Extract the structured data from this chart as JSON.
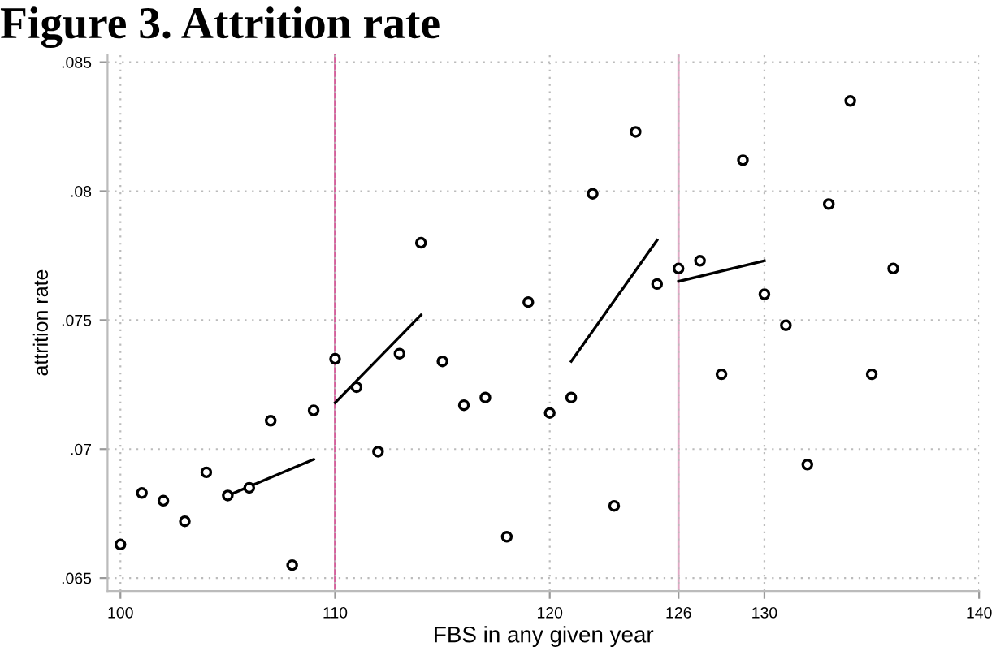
{
  "chart_data": {
    "type": "scatter",
    "title": "Figure 3. Attrition rate",
    "xlabel": "FBS in any given year",
    "ylabel": "attrition rate",
    "xlim": [
      99.4,
      140
    ],
    "ylim": [
      0.0645,
      0.0853
    ],
    "xticks": [
      100,
      110,
      120,
      126,
      130,
      140
    ],
    "yticks": [
      {
        "value": 0.065,
        "label": ".065"
      },
      {
        "value": 0.07,
        "label": ".07"
      },
      {
        "value": 0.075,
        "label": ".075"
      },
      {
        "value": 0.08,
        "label": ".08"
      },
      {
        "value": 0.085,
        "label": ".085"
      }
    ],
    "grid": true,
    "series": [
      {
        "marker": "circle",
        "color": "#000000",
        "x": [
          100,
          101,
          102,
          103,
          104,
          105,
          106,
          107,
          108,
          109,
          110,
          111,
          112,
          113,
          114,
          115,
          116,
          117,
          118,
          119,
          120,
          121,
          122,
          123,
          124,
          125,
          126,
          127,
          128,
          129,
          130,
          131,
          132,
          133,
          134,
          135,
          136
        ],
        "values": [
          0.0663,
          0.0683,
          0.068,
          0.0672,
          0.0691,
          0.0682,
          0.0685,
          0.0711,
          0.0655,
          0.0715,
          0.0735,
          0.0724,
          0.0699,
          0.0737,
          0.078,
          0.0734,
          0.0717,
          0.072,
          0.0666,
          0.0757,
          0.0714,
          0.072,
          0.0799,
          0.0678,
          0.0823,
          0.0764,
          0.077,
          0.0773,
          0.0729,
          0.0812,
          0.076,
          0.0748,
          0.0694,
          0.0795,
          0.0835,
          0.0729,
          0.077
        ]
      },
      {
        "type": "line",
        "color": "#000000",
        "x": [
          105,
          109
        ],
        "values": [
          0.0682,
          0.0696
        ]
      },
      {
        "type": "line",
        "color": "#000000",
        "x": [
          110,
          114
        ],
        "values": [
          0.0718,
          0.0752
        ]
      },
      {
        "type": "line",
        "color": "#000000",
        "x": [
          121,
          125
        ],
        "values": [
          0.0734,
          0.0781
        ]
      },
      {
        "type": "line",
        "color": "#000000",
        "x": [
          126,
          130
        ],
        "values": [
          0.0765,
          0.0773
        ]
      }
    ],
    "ref_lines": [
      {
        "axis": "x",
        "value": 110,
        "color": "#d4609c"
      },
      {
        "axis": "x",
        "value": 126,
        "color": "#e0a8c4"
      }
    ]
  }
}
